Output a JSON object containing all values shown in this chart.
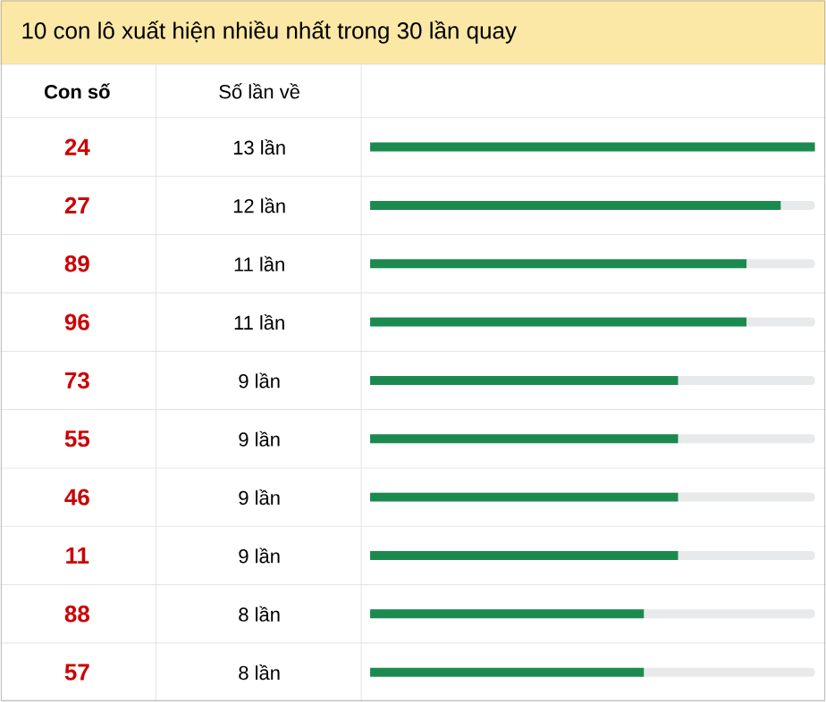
{
  "chart_data": {
    "type": "bar",
    "orientation": "horizontal",
    "title": "10 con lô xuất hiện nhiều nhất trong 30 lần quay",
    "ylabel": "Con số",
    "xlabel": "Số lần về",
    "categories": [
      "24",
      "27",
      "89",
      "96",
      "73",
      "55",
      "46",
      "11",
      "88",
      "57"
    ],
    "values": [
      13,
      12,
      11,
      11,
      9,
      9,
      9,
      9,
      8,
      8
    ],
    "value_labels": [
      "13 lần",
      "12 lần",
      "11 lần",
      "11 lần",
      "9 lần",
      "9 lần",
      "9 lần",
      "9 lần",
      "8 lần",
      "8 lần"
    ],
    "color": "#1b8a4f"
  }
}
